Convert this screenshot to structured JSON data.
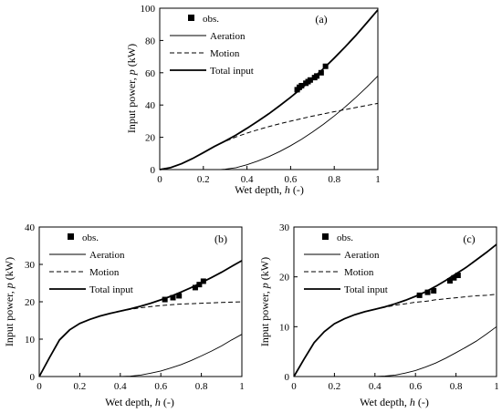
{
  "chart_data": [
    {
      "type": "line",
      "panel_label": "(a)",
      "xlabel_prefix": "Wet depth, ",
      "xlabel_var": "h",
      "xlabel_suffix": " (-)",
      "ylabel_prefix": "Input power, ",
      "ylabel_var": "p",
      "ylabel_suffix": " (kW)",
      "xlim": [
        0,
        1
      ],
      "ylim": [
        0,
        100
      ],
      "xticks": [
        0,
        0.2,
        0.4,
        0.6,
        0.8,
        1
      ],
      "xtick_labels": [
        "0",
        "0.2",
        "0.4",
        "0.6",
        "0.8",
        "1"
      ],
      "yticks": [
        0,
        20,
        40,
        60,
        80,
        100
      ],
      "ytick_labels": [
        "0",
        "20",
        "40",
        "60",
        "80",
        "100"
      ],
      "legend": [
        "obs.",
        "Aeration",
        "Motion",
        "Total input"
      ],
      "legend_position": "top-left",
      "grid": false,
      "series": [
        {
          "name": "Aeration",
          "style": "thin",
          "x": [
            0.28,
            0.3,
            0.35,
            0.4,
            0.45,
            0.5,
            0.55,
            0.6,
            0.65,
            0.7,
            0.75,
            0.8,
            0.85,
            0.9,
            0.95,
            1.0
          ],
          "y": [
            0,
            0.2,
            1.2,
            3.0,
            5.3,
            8.0,
            11.2,
            14.8,
            18.8,
            23.2,
            28.0,
            33.2,
            38.8,
            44.8,
            51.2,
            58.0
          ]
        },
        {
          "name": "Motion",
          "style": "dashed",
          "x": [
            0,
            0.05,
            0.1,
            0.15,
            0.2,
            0.25,
            0.3,
            0.35,
            0.4,
            0.45,
            0.5,
            0.55,
            0.6,
            0.65,
            0.7,
            0.75,
            0.8,
            0.85,
            0.9,
            0.95,
            1.0
          ],
          "y": [
            0,
            1.2,
            3.6,
            6.8,
            10.5,
            14.3,
            17.5,
            20.2,
            22.6,
            24.7,
            26.6,
            28.4,
            30.0,
            31.6,
            33.1,
            34.5,
            35.9,
            37.2,
            38.5,
            39.8,
            41.0
          ]
        },
        {
          "name": "Total input",
          "style": "thick",
          "x": [
            0,
            0.05,
            0.1,
            0.15,
            0.2,
            0.25,
            0.3,
            0.35,
            0.4,
            0.45,
            0.5,
            0.55,
            0.6,
            0.65,
            0.7,
            0.75,
            0.8,
            0.85,
            0.9,
            0.95,
            1.0
          ],
          "y": [
            0,
            1.2,
            3.6,
            6.8,
            10.5,
            14.3,
            17.7,
            21.4,
            25.6,
            30.0,
            34.6,
            39.6,
            44.8,
            50.4,
            56.3,
            62.5,
            69.1,
            76.0,
            83.3,
            91.0,
            99.0
          ]
        }
      ],
      "observations": {
        "name": "obs.",
        "x": [
          0.63,
          0.64,
          0.65,
          0.67,
          0.68,
          0.69,
          0.71,
          0.72,
          0.74,
          0.76
        ],
        "y": [
          49.5,
          51.0,
          52.0,
          53.5,
          54.5,
          55.5,
          57.0,
          58.0,
          60.0,
          64.0
        ]
      }
    },
    {
      "type": "line",
      "panel_label": "(b)",
      "xlabel_prefix": "Wet depth, ",
      "xlabel_var": "h",
      "xlabel_suffix": " (-)",
      "ylabel_prefix": "Input power, ",
      "ylabel_var": "p",
      "ylabel_suffix": " (kW)",
      "xlim": [
        0,
        1
      ],
      "ylim": [
        0,
        40
      ],
      "xticks": [
        0,
        0.2,
        0.4,
        0.6,
        0.8,
        1
      ],
      "xtick_labels": [
        "0",
        "0.2",
        "0.4",
        "0.6",
        "0.8",
        "1"
      ],
      "yticks": [
        0,
        10,
        20,
        30,
        40
      ],
      "ytick_labels": [
        "0",
        "10",
        "20",
        "30",
        "40"
      ],
      "legend": [
        "obs.",
        "Aeration",
        "Motion",
        "Total input"
      ],
      "legend_position": "top-left",
      "grid": false,
      "series": [
        {
          "name": "Aeration",
          "style": "thin",
          "x": [
            0.4,
            0.45,
            0.5,
            0.55,
            0.6,
            0.65,
            0.7,
            0.75,
            0.8,
            0.85,
            0.9,
            0.95,
            1.0
          ],
          "y": [
            0,
            0.1,
            0.4,
            0.9,
            1.5,
            2.3,
            3.2,
            4.3,
            5.5,
            6.8,
            8.2,
            9.8,
            11.3
          ]
        },
        {
          "name": "Motion",
          "style": "dashed",
          "x": [
            0,
            0.05,
            0.1,
            0.15,
            0.2,
            0.25,
            0.3,
            0.35,
            0.4,
            0.45,
            0.5,
            0.55,
            0.6,
            0.65,
            0.7,
            0.75,
            0.8,
            0.85,
            0.9,
            0.95,
            1.0
          ],
          "y": [
            0,
            5.0,
            9.8,
            12.5,
            14.2,
            15.3,
            16.2,
            16.9,
            17.5,
            18.0,
            18.4,
            18.7,
            19.0,
            19.2,
            19.4,
            19.5,
            19.6,
            19.7,
            19.8,
            19.9,
            20.0
          ]
        },
        {
          "name": "Total input",
          "style": "thick",
          "x": [
            0,
            0.05,
            0.1,
            0.15,
            0.2,
            0.25,
            0.3,
            0.35,
            0.4,
            0.45,
            0.5,
            0.55,
            0.6,
            0.65,
            0.7,
            0.75,
            0.8,
            0.85,
            0.9,
            0.95,
            1.0
          ],
          "y": [
            0,
            5.0,
            9.8,
            12.5,
            14.2,
            15.3,
            16.2,
            16.9,
            17.5,
            18.1,
            18.8,
            19.6,
            20.5,
            21.5,
            22.6,
            23.8,
            25.1,
            26.5,
            27.9,
            29.5,
            31.0
          ]
        }
      ],
      "observations": {
        "name": "obs.",
        "x": [
          0.62,
          0.66,
          0.69,
          0.77,
          0.79,
          0.81
        ],
        "y": [
          20.6,
          21.1,
          21.6,
          23.8,
          24.6,
          25.5
        ]
      }
    },
    {
      "type": "line",
      "panel_label": "(c)",
      "xlabel_prefix": "Wet depth, ",
      "xlabel_var": "h",
      "xlabel_suffix": " (-)",
      "ylabel_prefix": "Input power, ",
      "ylabel_var": "p",
      "ylabel_suffix": " (kW)",
      "xlim": [
        0,
        1
      ],
      "ylim": [
        0,
        30
      ],
      "xticks": [
        0,
        0.2,
        0.4,
        0.6,
        0.8,
        1
      ],
      "xtick_labels": [
        "0",
        "0.2",
        "0.4",
        "0.6",
        "0.8",
        "1"
      ],
      "yticks": [
        0,
        10,
        20,
        30
      ],
      "ytick_labels": [
        "0",
        "10",
        "20",
        "30"
      ],
      "legend": [
        "obs.",
        "Aeration",
        "Motion",
        "Total input"
      ],
      "legend_position": "top-left",
      "grid": false,
      "series": [
        {
          "name": "Aeration",
          "style": "thin",
          "x": [
            0.4,
            0.45,
            0.5,
            0.55,
            0.6,
            0.65,
            0.7,
            0.75,
            0.8,
            0.85,
            0.9,
            0.95,
            1.0
          ],
          "y": [
            0,
            0.1,
            0.3,
            0.7,
            1.2,
            1.9,
            2.7,
            3.7,
            4.8,
            5.9,
            7.1,
            8.5,
            10.0
          ]
        },
        {
          "name": "Motion",
          "style": "dashed",
          "x": [
            0,
            0.05,
            0.1,
            0.15,
            0.2,
            0.25,
            0.3,
            0.35,
            0.4,
            0.45,
            0.5,
            0.55,
            0.6,
            0.65,
            0.7,
            0.75,
            0.8,
            0.85,
            0.9,
            0.95,
            1.0
          ],
          "y": [
            0,
            3.5,
            6.8,
            9.0,
            10.6,
            11.6,
            12.4,
            13.0,
            13.5,
            13.9,
            14.3,
            14.6,
            14.9,
            15.1,
            15.4,
            15.6,
            15.8,
            16.0,
            16.2,
            16.3,
            16.5
          ]
        },
        {
          "name": "Total input",
          "style": "thick",
          "x": [
            0,
            0.05,
            0.1,
            0.15,
            0.2,
            0.25,
            0.3,
            0.35,
            0.4,
            0.45,
            0.5,
            0.55,
            0.6,
            0.65,
            0.7,
            0.75,
            0.8,
            0.85,
            0.9,
            0.95,
            1.0
          ],
          "y": [
            0,
            3.5,
            6.8,
            9.0,
            10.6,
            11.6,
            12.4,
            13.0,
            13.5,
            14.0,
            14.6,
            15.3,
            16.1,
            17.0,
            18.1,
            19.3,
            20.6,
            21.9,
            23.4,
            24.9,
            26.5
          ]
        }
      ],
      "observations": {
        "name": "obs.",
        "x": [
          0.62,
          0.66,
          0.69,
          0.77,
          0.79,
          0.81
        ],
        "y": [
          16.3,
          16.9,
          17.2,
          19.2,
          19.8,
          20.3
        ]
      }
    }
  ]
}
